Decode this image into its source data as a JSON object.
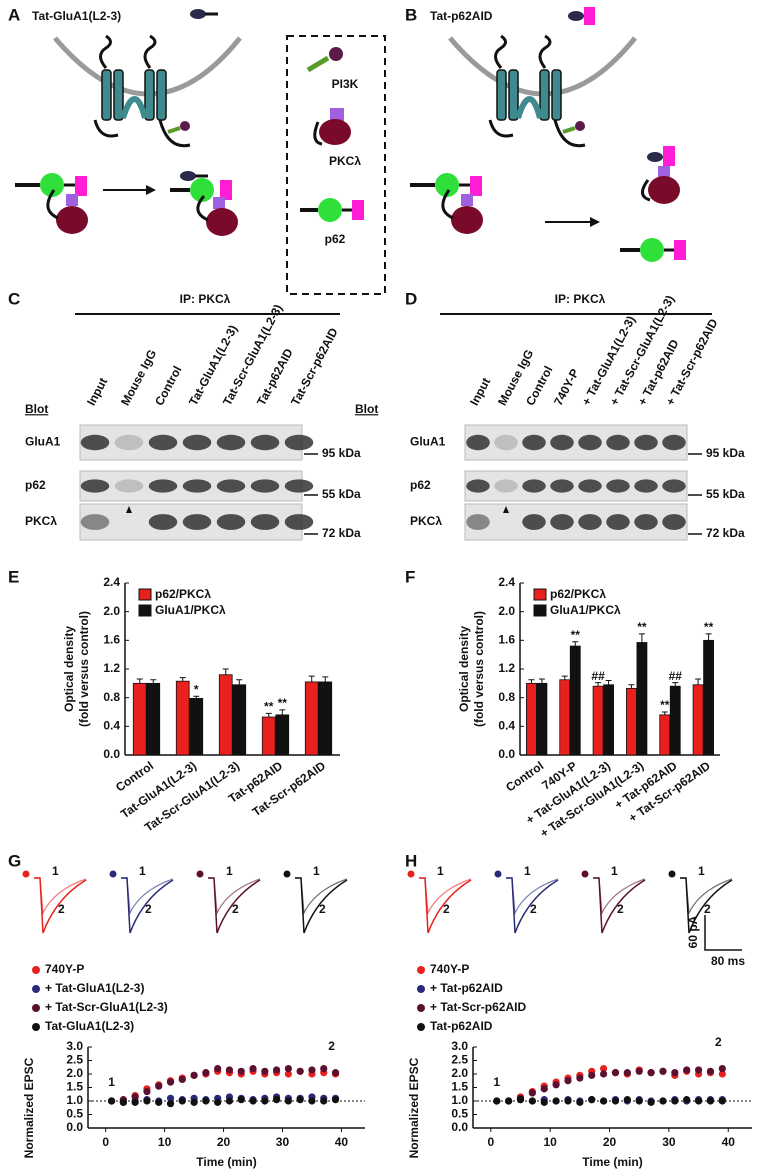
{
  "panels": {
    "A": {
      "letter": "A",
      "title": "Tat-GluA1(L2-3)",
      "legend": [
        "PI3K",
        "PKCλ",
        "p62"
      ]
    },
    "B": {
      "letter": "B",
      "title": "Tat-p62AID"
    },
    "C": {
      "letter": "C",
      "ip": "IP: PKCλ",
      "blot_labels": [
        "Blot",
        "Blot"
      ],
      "lanes": [
        "Input",
        "Mouse IgG",
        "Control",
        "Tat-GluA1(L2-3)",
        "Tat-Scr-GluA1(L2-3)",
        "Tat-p62AID",
        "Tat-Scr-p62AID"
      ],
      "rows": [
        "GluA1",
        "p62",
        "PKCλ"
      ],
      "sizes": [
        "95 kDa",
        "55 kDa",
        "72 kDa"
      ]
    },
    "D": {
      "letter": "D",
      "ip": "IP: PKCλ",
      "lanes": [
        "Input",
        "Mouse IgG",
        "Control",
        "740Y-P",
        "+ Tat-GluA1(L2-3)",
        "+ Tat-Scr-GluA1(L2-3)",
        "+ Tat-p62AID",
        "+ Tat-Scr-p62AID"
      ],
      "rows": [
        "GluA1",
        "p62",
        "PKCλ"
      ],
      "sizes": [
        "95 kDa",
        "55 kDa",
        "72 kDa"
      ]
    }
  },
  "chart_data": [
    {
      "type": "bar",
      "label": "E",
      "ylabel": "Optical density",
      "ylabel_sub": "(fold versus control)",
      "categories": [
        "Control",
        "Tat-GluA1(L2-3)",
        "Tat-Scr-GluA1(L2-3)",
        "Tat-p62AID",
        "Tat-Scr-p62AID"
      ],
      "series": [
        {
          "name": "p62/PKCλ",
          "color": "#e8201e",
          "values": [
            1.0,
            1.03,
            1.12,
            0.53,
            1.02
          ],
          "errors": [
            0.06,
            0.05,
            0.08,
            0.05,
            0.08
          ],
          "annotations": [
            null,
            null,
            null,
            "**",
            null
          ]
        },
        {
          "name": "GluA1/PKCλ",
          "color": "#111111",
          "values": [
            1.0,
            0.79,
            0.98,
            0.56,
            1.02
          ],
          "errors": [
            0.05,
            0.03,
            0.07,
            0.07,
            0.07
          ],
          "annotations": [
            null,
            "*",
            null,
            "**",
            null
          ]
        }
      ],
      "ylim": [
        0,
        2.4
      ],
      "yticks": [
        {
          "value": 0,
          "label": "0.0"
        },
        {
          "value": 0.4,
          "label": "0.4"
        },
        {
          "value": 0.8,
          "label": "0.8"
        },
        {
          "value": 1.2,
          "label": "1.2"
        },
        {
          "value": 1.6,
          "label": "1.6"
        },
        {
          "value": 2.0,
          "label": "2.0"
        },
        {
          "value": 2.4,
          "label": "2.4"
        }
      ]
    },
    {
      "type": "bar",
      "label": "F",
      "ylabel": "Optical density",
      "ylabel_sub": "(fold versus control)",
      "categories": [
        "Control",
        "740Y-P",
        "+ Tat-GluA1(L2-3)",
        "+ Tat-Scr-GluA1(L2-3)",
        "+ Tat-p62AID",
        "+ Tat-Scr-p62AID"
      ],
      "series": [
        {
          "name": "p62/PKCλ",
          "color": "#e8201e",
          "values": [
            1.0,
            1.05,
            0.96,
            0.93,
            0.56,
            0.98
          ],
          "errors": [
            0.05,
            0.05,
            0.05,
            0.05,
            0.04,
            0.08
          ],
          "annotations": [
            null,
            null,
            "##",
            null,
            "**",
            null
          ]
        },
        {
          "name": "GluA1/PKCλ",
          "color": "#111111",
          "values": [
            1.0,
            1.52,
            0.98,
            1.57,
            0.96,
            1.6
          ],
          "errors": [
            0.06,
            0.06,
            0.06,
            0.12,
            0.05,
            0.09
          ],
          "annotations": [
            null,
            "**",
            null,
            "**",
            "##",
            "**"
          ]
        }
      ],
      "ylim": [
        0,
        2.4
      ],
      "yticks": [
        {
          "value": 0,
          "label": "0.0"
        },
        {
          "value": 0.4,
          "label": "0.4"
        },
        {
          "value": 0.8,
          "label": "0.8"
        },
        {
          "value": 1.2,
          "label": "1.2"
        },
        {
          "value": 1.6,
          "label": "1.6"
        },
        {
          "value": 2.0,
          "label": "2.0"
        },
        {
          "value": 2.4,
          "label": "2.4"
        }
      ]
    },
    {
      "type": "scatter",
      "label": "G",
      "ylabel": "Normalized EPSC",
      "xlabel": "Time (min)",
      "trace_labels": [
        "1",
        "2"
      ],
      "point_labels": [
        "1",
        "2"
      ],
      "reference_line": 1.0,
      "x": [
        1,
        3,
        5,
        7,
        9,
        11,
        13,
        15,
        17,
        19,
        21,
        23,
        25,
        27,
        29,
        31,
        33,
        35,
        37,
        39
      ],
      "series": [
        {
          "name": "740Y-P",
          "color": "#e8201e",
          "values": [
            1.0,
            1.0,
            1.2,
            1.45,
            1.6,
            1.75,
            1.85,
            1.95,
            2.0,
            2.1,
            2.05,
            2.0,
            2.1,
            2.0,
            2.05,
            2.0,
            2.1,
            2.0,
            2.05,
            2.0
          ]
        },
        {
          "name": "+ Tat-GluA1(L2-3)",
          "color": "#2a2a7a",
          "values": [
            1.0,
            0.95,
            1.0,
            1.05,
            1.0,
            1.1,
            1.05,
            1.1,
            1.05,
            1.1,
            1.15,
            1.1,
            1.05,
            1.1,
            1.15,
            1.1,
            1.1,
            1.15,
            1.1,
            1.1
          ]
        },
        {
          "name": "+ Tat-Scr-GluA1(L2-3)",
          "color": "#5a1030",
          "values": [
            1.0,
            1.05,
            1.15,
            1.35,
            1.55,
            1.7,
            1.8,
            1.95,
            2.05,
            2.2,
            2.15,
            2.1,
            2.2,
            2.1,
            2.15,
            2.2,
            2.1,
            2.15,
            2.2,
            2.05
          ]
        },
        {
          "name": "Tat-GluA1(L2-3)",
          "color": "#111111",
          "values": [
            1.0,
            0.95,
            0.95,
            1.0,
            0.95,
            0.9,
            1.0,
            0.95,
            1.0,
            0.95,
            1.0,
            1.05,
            1.0,
            1.0,
            1.05,
            1.0,
            1.05,
            1.0,
            1.0,
            1.05
          ]
        }
      ],
      "xlim": [
        -3,
        44
      ],
      "xticks": [
        0,
        10,
        20,
        30,
        40
      ],
      "ylim": [
        0,
        3.0
      ],
      "yticks": [
        {
          "value": 0,
          "label": "0.0"
        },
        {
          "value": 0.5,
          "label": "0.5"
        },
        {
          "value": 1.0,
          "label": "1.0"
        },
        {
          "value": 1.5,
          "label": "1.5"
        },
        {
          "value": 2.0,
          "label": "2.0"
        },
        {
          "value": 2.5,
          "label": "2.5"
        },
        {
          "value": 3.0,
          "label": "3.0"
        }
      ]
    },
    {
      "type": "scatter",
      "label": "H",
      "ylabel": "Normalized EPSC",
      "xlabel": "Time (min)",
      "trace_labels": [
        "1",
        "2"
      ],
      "point_labels": [
        "1",
        "2"
      ],
      "reference_line": 1.0,
      "scale_bar": {
        "y": "60 pA",
        "x": "80 ms"
      },
      "x": [
        1,
        3,
        5,
        7,
        9,
        11,
        13,
        15,
        17,
        19,
        21,
        23,
        25,
        27,
        29,
        31,
        33,
        35,
        37,
        39
      ],
      "series": [
        {
          "name": "740Y-P",
          "color": "#e8201e",
          "values": [
            1.0,
            1.0,
            1.15,
            1.35,
            1.55,
            1.7,
            1.85,
            1.95,
            2.1,
            2.2,
            2.05,
            2.0,
            2.15,
            2.05,
            2.1,
            1.95,
            2.1,
            2.0,
            2.05,
            2.0
          ]
        },
        {
          "name": "+ Tat-p62AID",
          "color": "#2a2a7a",
          "values": [
            1.0,
            1.0,
            1.05,
            1.0,
            1.05,
            1.0,
            1.05,
            1.0,
            1.05,
            1.0,
            1.05,
            1.0,
            1.05,
            1.0,
            1.0,
            1.05,
            1.0,
            1.05,
            1.05,
            1.05
          ]
        },
        {
          "name": "+ Tat-Scr-p62AID",
          "color": "#5a1030",
          "values": [
            1.0,
            1.0,
            1.1,
            1.3,
            1.45,
            1.6,
            1.75,
            1.85,
            1.95,
            2.0,
            2.05,
            2.05,
            2.1,
            2.05,
            2.1,
            2.05,
            2.15,
            2.15,
            2.1,
            2.2
          ]
        },
        {
          "name": "Tat-p62AID",
          "color": "#111111",
          "values": [
            1.0,
            1.0,
            1.05,
            1.0,
            0.95,
            1.0,
            1.0,
            0.95,
            1.05,
            1.0,
            1.0,
            1.05,
            1.0,
            0.95,
            1.0,
            1.0,
            1.05,
            1.0,
            1.0,
            1.0
          ]
        }
      ],
      "xlim": [
        -3,
        44
      ],
      "xticks": [
        0,
        10,
        20,
        30,
        40
      ],
      "ylim": [
        0,
        3.0
      ],
      "yticks": [
        {
          "value": 0,
          "label": "0.0"
        },
        {
          "value": 0.5,
          "label": "0.5"
        },
        {
          "value": 1.0,
          "label": "1.0"
        },
        {
          "value": 1.5,
          "label": "1.5"
        },
        {
          "value": 2.0,
          "label": "2.0"
        },
        {
          "value": 2.5,
          "label": "2.5"
        },
        {
          "value": 3.0,
          "label": "3.0"
        }
      ]
    }
  ]
}
